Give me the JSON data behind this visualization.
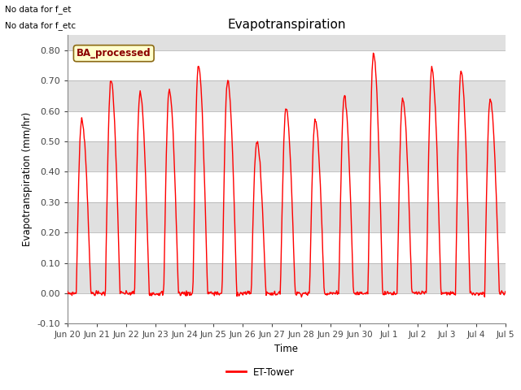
{
  "title": "Evapotranspiration",
  "ylabel": "Evapotranspiration (mm/hr)",
  "xlabel": "Time",
  "ylim": [
    -0.1,
    0.85
  ],
  "yticks": [
    -0.1,
    0.0,
    0.1,
    0.2,
    0.3,
    0.4,
    0.5,
    0.6,
    0.7,
    0.8
  ],
  "line_color": "red",
  "line_width": 1.0,
  "legend_label": "ET-Tower",
  "no_data_text": [
    "No data for f_et",
    "No data for f_etc"
  ],
  "ba_label": "BA_processed",
  "background_color": "#f0f0f0",
  "band_colors": [
    "#ffffff",
    "#e0e0e0"
  ],
  "band_edges": [
    -0.1,
    0.0,
    0.1,
    0.2,
    0.3,
    0.4,
    0.5,
    0.6,
    0.7,
    0.8,
    0.85
  ],
  "tick_labels": [
    "Jun 20",
    "Jun 21",
    "Jun 22",
    "Jun 23",
    "Jun 24",
    "Jun 25",
    "Jun 26",
    "Jun 27",
    "Jun 28",
    "Jun 29",
    "Jun 30",
    "Jul 1",
    "Jul 2",
    "Jul 3",
    "Jul 4",
    "Jul 5"
  ],
  "num_days": 15,
  "daily_peaks": [
    0.57,
    0.7,
    0.66,
    0.67,
    0.75,
    0.7,
    0.5,
    0.61,
    0.57,
    0.65,
    0.79,
    0.64,
    0.74,
    0.73,
    0.64
  ],
  "figsize": [
    6.4,
    4.8
  ],
  "dpi": 100
}
